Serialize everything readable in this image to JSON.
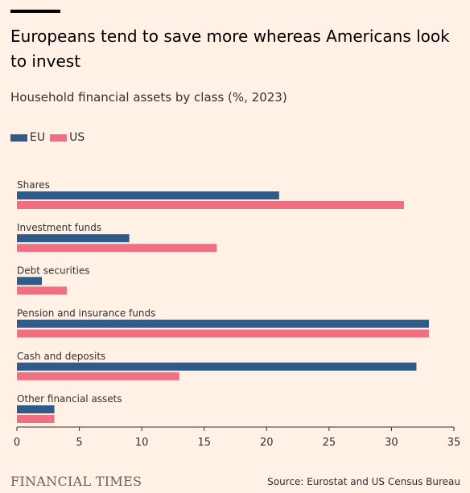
{
  "header": {
    "title": "Europeans tend to save more whereas Americans look to invest",
    "subtitle": "Household financial assets by class (%, 2023)"
  },
  "footer": {
    "brand": "FINANCIAL TIMES",
    "source": "Source: Eurostat and US Census Bureau"
  },
  "chart_data": {
    "type": "bar",
    "orientation": "horizontal",
    "categories": [
      "Shares",
      "Investment funds",
      "Debt securities",
      "Pension and insurance funds",
      "Cash and deposits",
      "Other financial assets"
    ],
    "series": [
      {
        "name": "EU",
        "color": "#2e5b8a",
        "values": [
          21,
          9,
          2,
          33,
          32,
          3
        ]
      },
      {
        "name": "US",
        "color": "#f07082",
        "values": [
          31,
          16,
          4,
          33,
          13,
          3
        ]
      }
    ],
    "xlim": [
      0,
      35
    ],
    "xticks": [
      "0",
      "5",
      "10",
      "15",
      "20",
      "25",
      "30",
      "35"
    ],
    "grid": false,
    "legend_position": "top-left"
  }
}
